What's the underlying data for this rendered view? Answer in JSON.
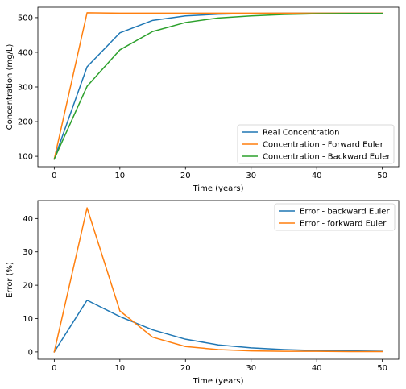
{
  "chart_data": [
    {
      "type": "line",
      "xlabel": "Time (years)",
      "ylabel": "Concentration (mg/L)",
      "xlim": [
        -2.5,
        52.5
      ],
      "ylim": [
        70,
        530
      ],
      "xticks": [
        0,
        10,
        20,
        30,
        40,
        50
      ],
      "yticks": [
        100,
        200,
        300,
        400,
        500
      ],
      "grid": false,
      "legend_position": "lower-right",
      "x": [
        0,
        5,
        10,
        15,
        20,
        25,
        30,
        35,
        40,
        45,
        50
      ],
      "series": [
        {
          "name": "Real Concentration",
          "color": "#1f77b4",
          "values": [
            92,
            358,
            456,
            492,
            505,
            510,
            512,
            513,
            513,
            513,
            513
          ]
        },
        {
          "name": "Concentration - Forward Euler",
          "color": "#ff7f0e",
          "values": [
            92,
            514,
            513,
            513,
            513,
            513,
            513,
            513,
            513,
            513,
            513
          ]
        },
        {
          "name": "Concentration - Backward Euler",
          "color": "#2ca02c",
          "values": [
            92,
            302,
            407,
            460,
            486,
            499,
            505,
            509,
            511,
            512,
            512
          ]
        }
      ]
    },
    {
      "type": "line",
      "xlabel": "Time (years)",
      "ylabel": "Error (%)",
      "xlim": [
        -2.5,
        52.5
      ],
      "ylim": [
        -2.2,
        45.4
      ],
      "xticks": [
        0,
        10,
        20,
        30,
        40,
        50
      ],
      "yticks": [
        0,
        10,
        20,
        30,
        40
      ],
      "grid": false,
      "legend_position": "top-right",
      "x": [
        0,
        5,
        10,
        15,
        20,
        25,
        30,
        35,
        40,
        45,
        50
      ],
      "series": [
        {
          "name": "Error - backward Euler",
          "color": "#1f77b4",
          "values": [
            0,
            15.5,
            10.6,
            6.6,
            3.8,
            2.1,
            1.2,
            0.7,
            0.4,
            0.3,
            0.2
          ]
        },
        {
          "name": "Error - forkward Euler",
          "color": "#ff7f0e",
          "values": [
            0,
            43.2,
            12.3,
            4.4,
            1.6,
            0.7,
            0.3,
            0.2,
            0.2,
            0.1,
            0.1
          ]
        }
      ]
    }
  ]
}
